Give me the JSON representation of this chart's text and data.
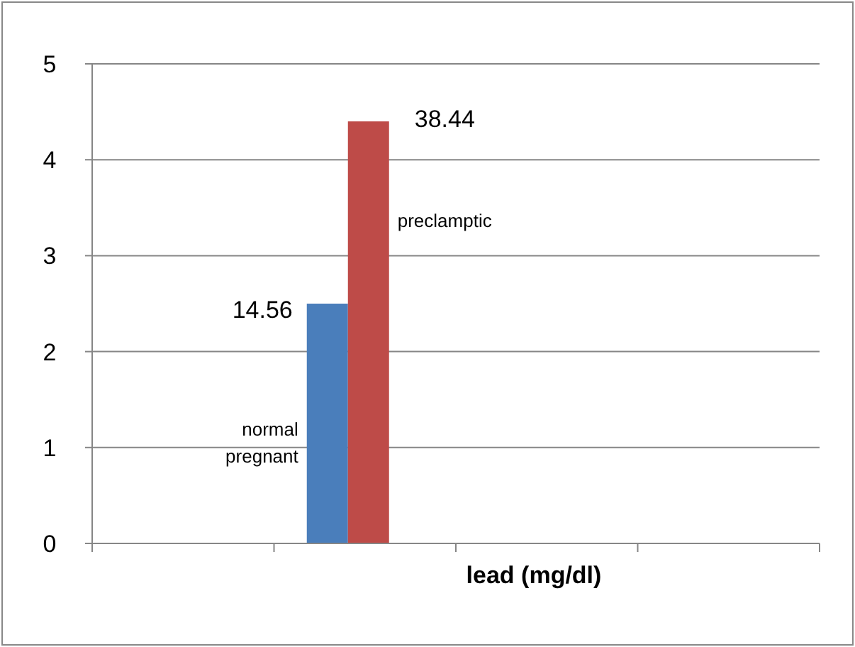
{
  "chart_data": {
    "type": "bar",
    "xlabel": "lead (mg/dl)",
    "categories": [
      null,
      null,
      null,
      null
    ],
    "series": [
      {
        "name": "normal pregnant",
        "color": "#4a7ebb",
        "values": [
          null,
          2.5,
          null,
          null
        ]
      },
      {
        "name": "preclamptic",
        "color": "#be4b48",
        "values": [
          null,
          4.4,
          null,
          null
        ]
      }
    ],
    "ylim": [
      0,
      5
    ],
    "yticks": [
      0,
      1,
      2,
      3,
      4,
      5
    ],
    "grid": "y",
    "annotations": [
      "14.56",
      "38.44"
    ]
  }
}
